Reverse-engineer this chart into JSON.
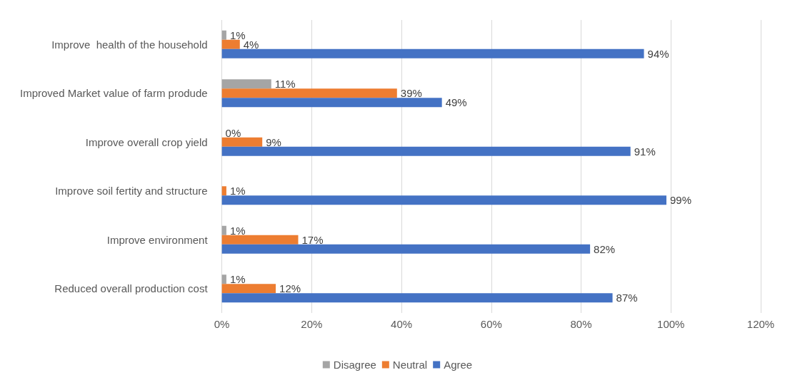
{
  "chart_data": {
    "type": "bar",
    "orientation": "horizontal",
    "categories": [
      "Improve  health of the household",
      "Improved Market value of farm produde",
      "Improve overall crop yield",
      "Improve soil fertity and structure",
      "Improve environment",
      "Reduced overall production cost"
    ],
    "series": [
      {
        "name": "Disagree",
        "color": "#a5a5a5",
        "values": [
          1,
          11,
          0,
          null,
          1,
          1
        ],
        "value_labels": [
          "1%",
          "11%",
          "0%",
          null,
          "1%",
          "1%"
        ]
      },
      {
        "name": "Neutral",
        "color": "#ed7d31",
        "values": [
          4,
          39,
          9,
          1,
          17,
          12
        ],
        "value_labels": [
          "4%",
          "39%",
          "9%",
          "1%",
          "17%",
          "12%"
        ]
      },
      {
        "name": "Agree",
        "color": "#4472c4",
        "values": [
          94,
          49,
          91,
          99,
          82,
          87
        ],
        "value_labels": [
          "94%",
          "49%",
          "91%",
          "99%",
          "82%",
          "87%"
        ]
      }
    ],
    "xlim": [
      0,
      120
    ],
    "xticks": [
      {
        "value": 0,
        "label": "0%"
      },
      {
        "value": 20,
        "label": "20%"
      },
      {
        "value": 40,
        "label": "40%"
      },
      {
        "value": 60,
        "label": "60%"
      },
      {
        "value": 80,
        "label": "80%"
      },
      {
        "value": 100,
        "label": "100%"
      },
      {
        "value": 120,
        "label": "120%"
      }
    ],
    "grid": "x",
    "legend": "bottom"
  }
}
